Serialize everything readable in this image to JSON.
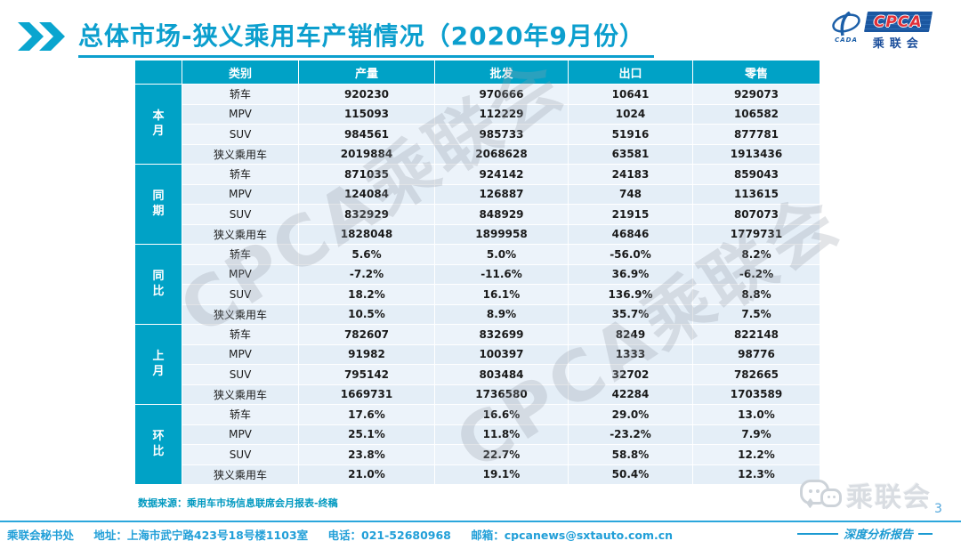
{
  "header": {
    "title": "总体市场-狭义乘用车产销情况（2020年9月份）",
    "logo": {
      "cpca": "CPCA",
      "cada": "CADA",
      "cn": "乘联会"
    }
  },
  "table": {
    "columns": [
      "类别",
      "产量",
      "批发",
      "出口",
      "零售"
    ],
    "groups": [
      {
        "label": "本月",
        "rows": [
          {
            "category": "轿车",
            "values": [
              "920230",
              "970666",
              "10641",
              "929073"
            ]
          },
          {
            "category": "MPV",
            "values": [
              "115093",
              "112229",
              "1024",
              "106582"
            ]
          },
          {
            "category": "SUV",
            "values": [
              "984561",
              "985733",
              "51916",
              "877781"
            ]
          },
          {
            "category": "狭义乘用车",
            "values": [
              "2019884",
              "2068628",
              "63581",
              "1913436"
            ]
          }
        ]
      },
      {
        "label": "同期",
        "rows": [
          {
            "category": "轿车",
            "values": [
              "871035",
              "924142",
              "24183",
              "859043"
            ]
          },
          {
            "category": "MPV",
            "values": [
              "124084",
              "126887",
              "748",
              "113615"
            ]
          },
          {
            "category": "SUV",
            "values": [
              "832929",
              "848929",
              "21915",
              "807073"
            ]
          },
          {
            "category": "狭义乘用车",
            "values": [
              "1828048",
              "1899958",
              "46846",
              "1779731"
            ]
          }
        ]
      },
      {
        "label": "同比",
        "rows": [
          {
            "category": "轿车",
            "values": [
              "5.6%",
              "5.0%",
              "-56.0%",
              "8.2%"
            ]
          },
          {
            "category": "MPV",
            "values": [
              "-7.2%",
              "-11.6%",
              "36.9%",
              "-6.2%"
            ]
          },
          {
            "category": "SUV",
            "values": [
              "18.2%",
              "16.1%",
              "136.9%",
              "8.8%"
            ]
          },
          {
            "category": "狭义乘用车",
            "values": [
              "10.5%",
              "8.9%",
              "35.7%",
              "7.5%"
            ]
          }
        ]
      },
      {
        "label": "上月",
        "rows": [
          {
            "category": "轿车",
            "values": [
              "782607",
              "832699",
              "8249",
              "822148"
            ]
          },
          {
            "category": "MPV",
            "values": [
              "91982",
              "100397",
              "1333",
              "98776"
            ]
          },
          {
            "category": "SUV",
            "values": [
              "795142",
              "803484",
              "32702",
              "782665"
            ]
          },
          {
            "category": "狭义乘用车",
            "values": [
              "1669731",
              "1736580",
              "42284",
              "1703589"
            ]
          }
        ]
      },
      {
        "label": "环比",
        "rows": [
          {
            "category": "轿车",
            "values": [
              "17.6%",
              "16.6%",
              "29.0%",
              "13.0%"
            ]
          },
          {
            "category": "MPV",
            "values": [
              "25.1%",
              "11.8%",
              "-23.2%",
              "7.9%"
            ]
          },
          {
            "category": "SUV",
            "values": [
              "23.8%",
              "22.7%",
              "58.8%",
              "12.2%"
            ]
          },
          {
            "category": "狭义乘用车",
            "values": [
              "21.0%",
              "19.1%",
              "50.4%",
              "12.3%"
            ]
          }
        ]
      }
    ]
  },
  "source_note": "数据来源：乘用车市场信息联席会月报表-终稿",
  "footer": {
    "segments": [
      "乘联会秘书处",
      "地址：上海市武宁路423号18号楼1103室",
      "电话：021-52680968",
      "邮箱：cpcanews@sxtauto.com.cn"
    ]
  },
  "bottom_right": {
    "wechat_name": "乘联会",
    "page_number": "3",
    "report_label": "深度分析报告"
  },
  "watermark": "CPCA乘联会",
  "colors": {
    "teal_header": "#00A2C6",
    "title_cyan": "#0C9FCE",
    "row_light": "#ECF3FA",
    "row_dark": "#E4EEF7",
    "footer_blue": "#219FD8",
    "logo_blue": "#1B57A0",
    "logo_red": "#E23038"
  }
}
